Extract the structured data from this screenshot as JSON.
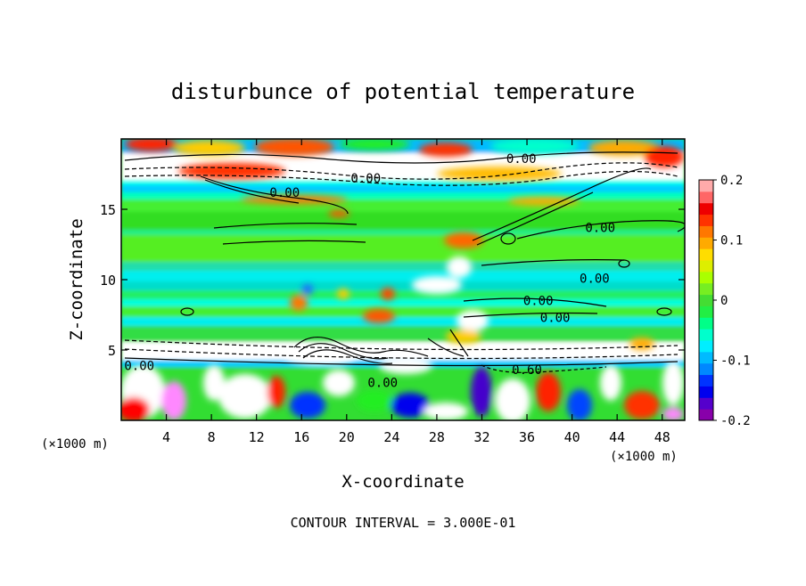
{
  "chart_data": {
    "type": "heatmap",
    "title": "disturbunce of potential temperature",
    "xlabel": "X-coordinate",
    "ylabel": "Z-coordinate",
    "x_unit": "(×1000 m)",
    "x_unit_right": "(×1000 m)",
    "footer": "CONTOUR INTERVAL = 3.000E-01",
    "xlim": [
      0,
      50
    ],
    "ylim": [
      0,
      20
    ],
    "x_ticks": [
      4,
      8,
      12,
      16,
      20,
      24,
      28,
      32,
      36,
      40,
      44,
      48
    ],
    "y_ticks": [
      5,
      10,
      15
    ],
    "colorbar": {
      "ticks": [
        "0.2",
        "0.1",
        "0",
        "-0.1",
        "-0.2"
      ],
      "tick_values": [
        0.2,
        0.1,
        0,
        -0.1,
        -0.2
      ],
      "range": [
        -0.2,
        0.2
      ],
      "colors": [
        "#8800aa",
        "#5500cc",
        "#0000ee",
        "#0033ff",
        "#0088ff",
        "#00bbff",
        "#00eeff",
        "#00ffcc",
        "#00ff88",
        "#22ee44",
        "#44dd33",
        "#77ee22",
        "#aaff00",
        "#ddee00",
        "#ffdd00",
        "#ffaa00",
        "#ff7700",
        "#ff3300",
        "#ee0000",
        "#ff6666",
        "#ffaaaa"
      ]
    },
    "contour_labels": [
      {
        "text": "0.00",
        "x": 35.5,
        "z": 18.6
      },
      {
        "text": "0.00",
        "x": 21.7,
        "z": 17.2
      },
      {
        "text": "0.00",
        "x": 14.5,
        "z": 16.2
      },
      {
        "text": "0.00",
        "x": 42.5,
        "z": 13.7
      },
      {
        "text": "0.00",
        "x": 42.0,
        "z": 10.1
      },
      {
        "text": "0.00",
        "x": 37.0,
        "z": 8.5
      },
      {
        "text": "0.00",
        "x": 38.5,
        "z": 7.3
      },
      {
        "text": "0.60",
        "x": 36.0,
        "z": 3.6
      },
      {
        "text": "0.00",
        "x": 23.2,
        "z": 2.7
      },
      {
        "text": "0.00",
        "x": 1.6,
        "z": 3.9
      }
    ]
  }
}
